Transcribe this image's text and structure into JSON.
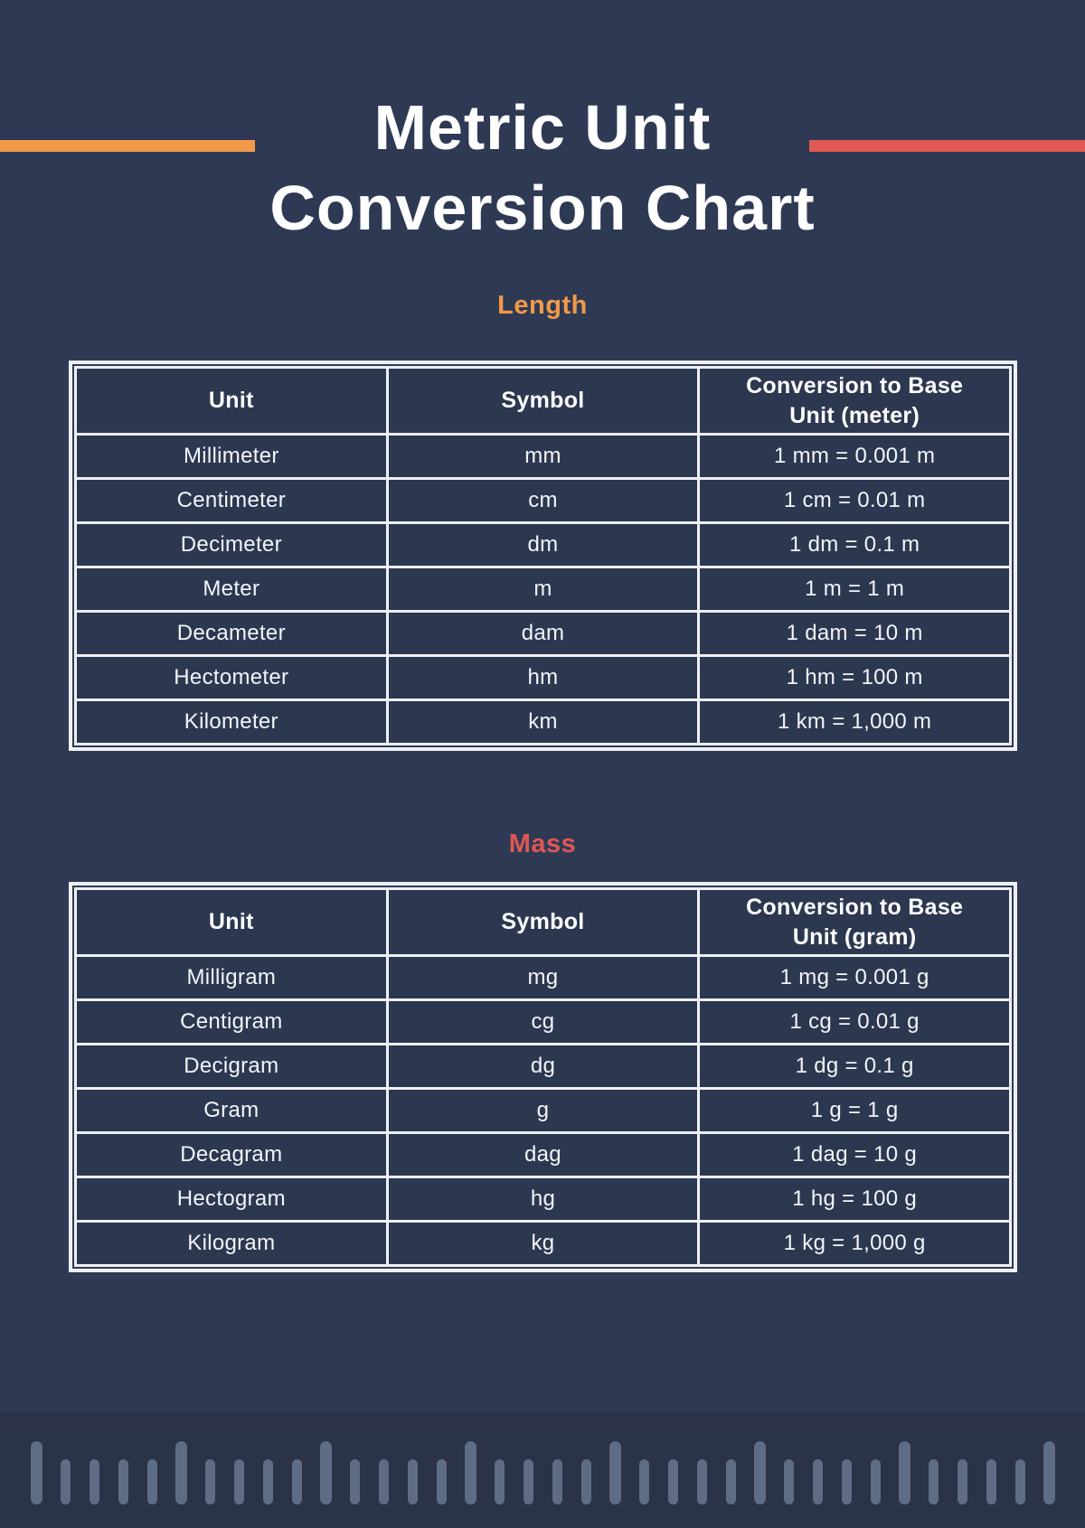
{
  "page": {
    "title_line1": "Metric Unit",
    "title_line2": "Conversion Chart"
  },
  "colors": {
    "background": "#2e3a54",
    "band": "#2a3347",
    "cell_bg": "#2c3850",
    "border": "#eef0f5",
    "orange": "#f2994a",
    "red": "#e05756",
    "tick": "#5e6c86",
    "text": "#f3f5f9"
  },
  "length_section": {
    "heading": "Length",
    "columns": [
      "Unit",
      "Symbol",
      "Conversion to Base\nUnit (meter)"
    ],
    "rows": [
      {
        "unit": "Millimeter",
        "symbol": "mm",
        "conversion": "1 mm = 0.001 m"
      },
      {
        "unit": "Centimeter",
        "symbol": "cm",
        "conversion": "1 cm = 0.01 m"
      },
      {
        "unit": "Decimeter",
        "symbol": "dm",
        "conversion": "1 dm = 0.1 m"
      },
      {
        "unit": "Meter",
        "symbol": "m",
        "conversion": "1 m = 1 m"
      },
      {
        "unit": "Decameter",
        "symbol": "dam",
        "conversion": "1 dam = 10 m"
      },
      {
        "unit": "Hectometer",
        "symbol": "hm",
        "conversion": "1 hm = 100 m"
      },
      {
        "unit": "Kilometer",
        "symbol": "km",
        "conversion": "1 km = 1,000 m"
      }
    ]
  },
  "mass_section": {
    "heading": "Mass",
    "columns": [
      "Unit",
      "Symbol",
      "Conversion to Base\nUnit (gram)"
    ],
    "rows": [
      {
        "unit": "Milligram",
        "symbol": "mg",
        "conversion": "1 mg = 0.001 g"
      },
      {
        "unit": "Centigram",
        "symbol": "cg",
        "conversion": "1 cg = 0.01 g"
      },
      {
        "unit": "Decigram",
        "symbol": "dg",
        "conversion": "1 dg = 0.1 g"
      },
      {
        "unit": "Gram",
        "symbol": "g",
        "conversion": "1 g = 1 g"
      },
      {
        "unit": "Decagram",
        "symbol": "dag",
        "conversion": "1 dag = 10 g"
      },
      {
        "unit": "Hectogram",
        "symbol": "hg",
        "conversion": "1 hg = 100 g"
      },
      {
        "unit": "Kilogram",
        "symbol": "kg",
        "conversion": "1 kg = 1,000 g"
      }
    ]
  },
  "ruler": {
    "tick_count": 36,
    "major_every": 5
  }
}
